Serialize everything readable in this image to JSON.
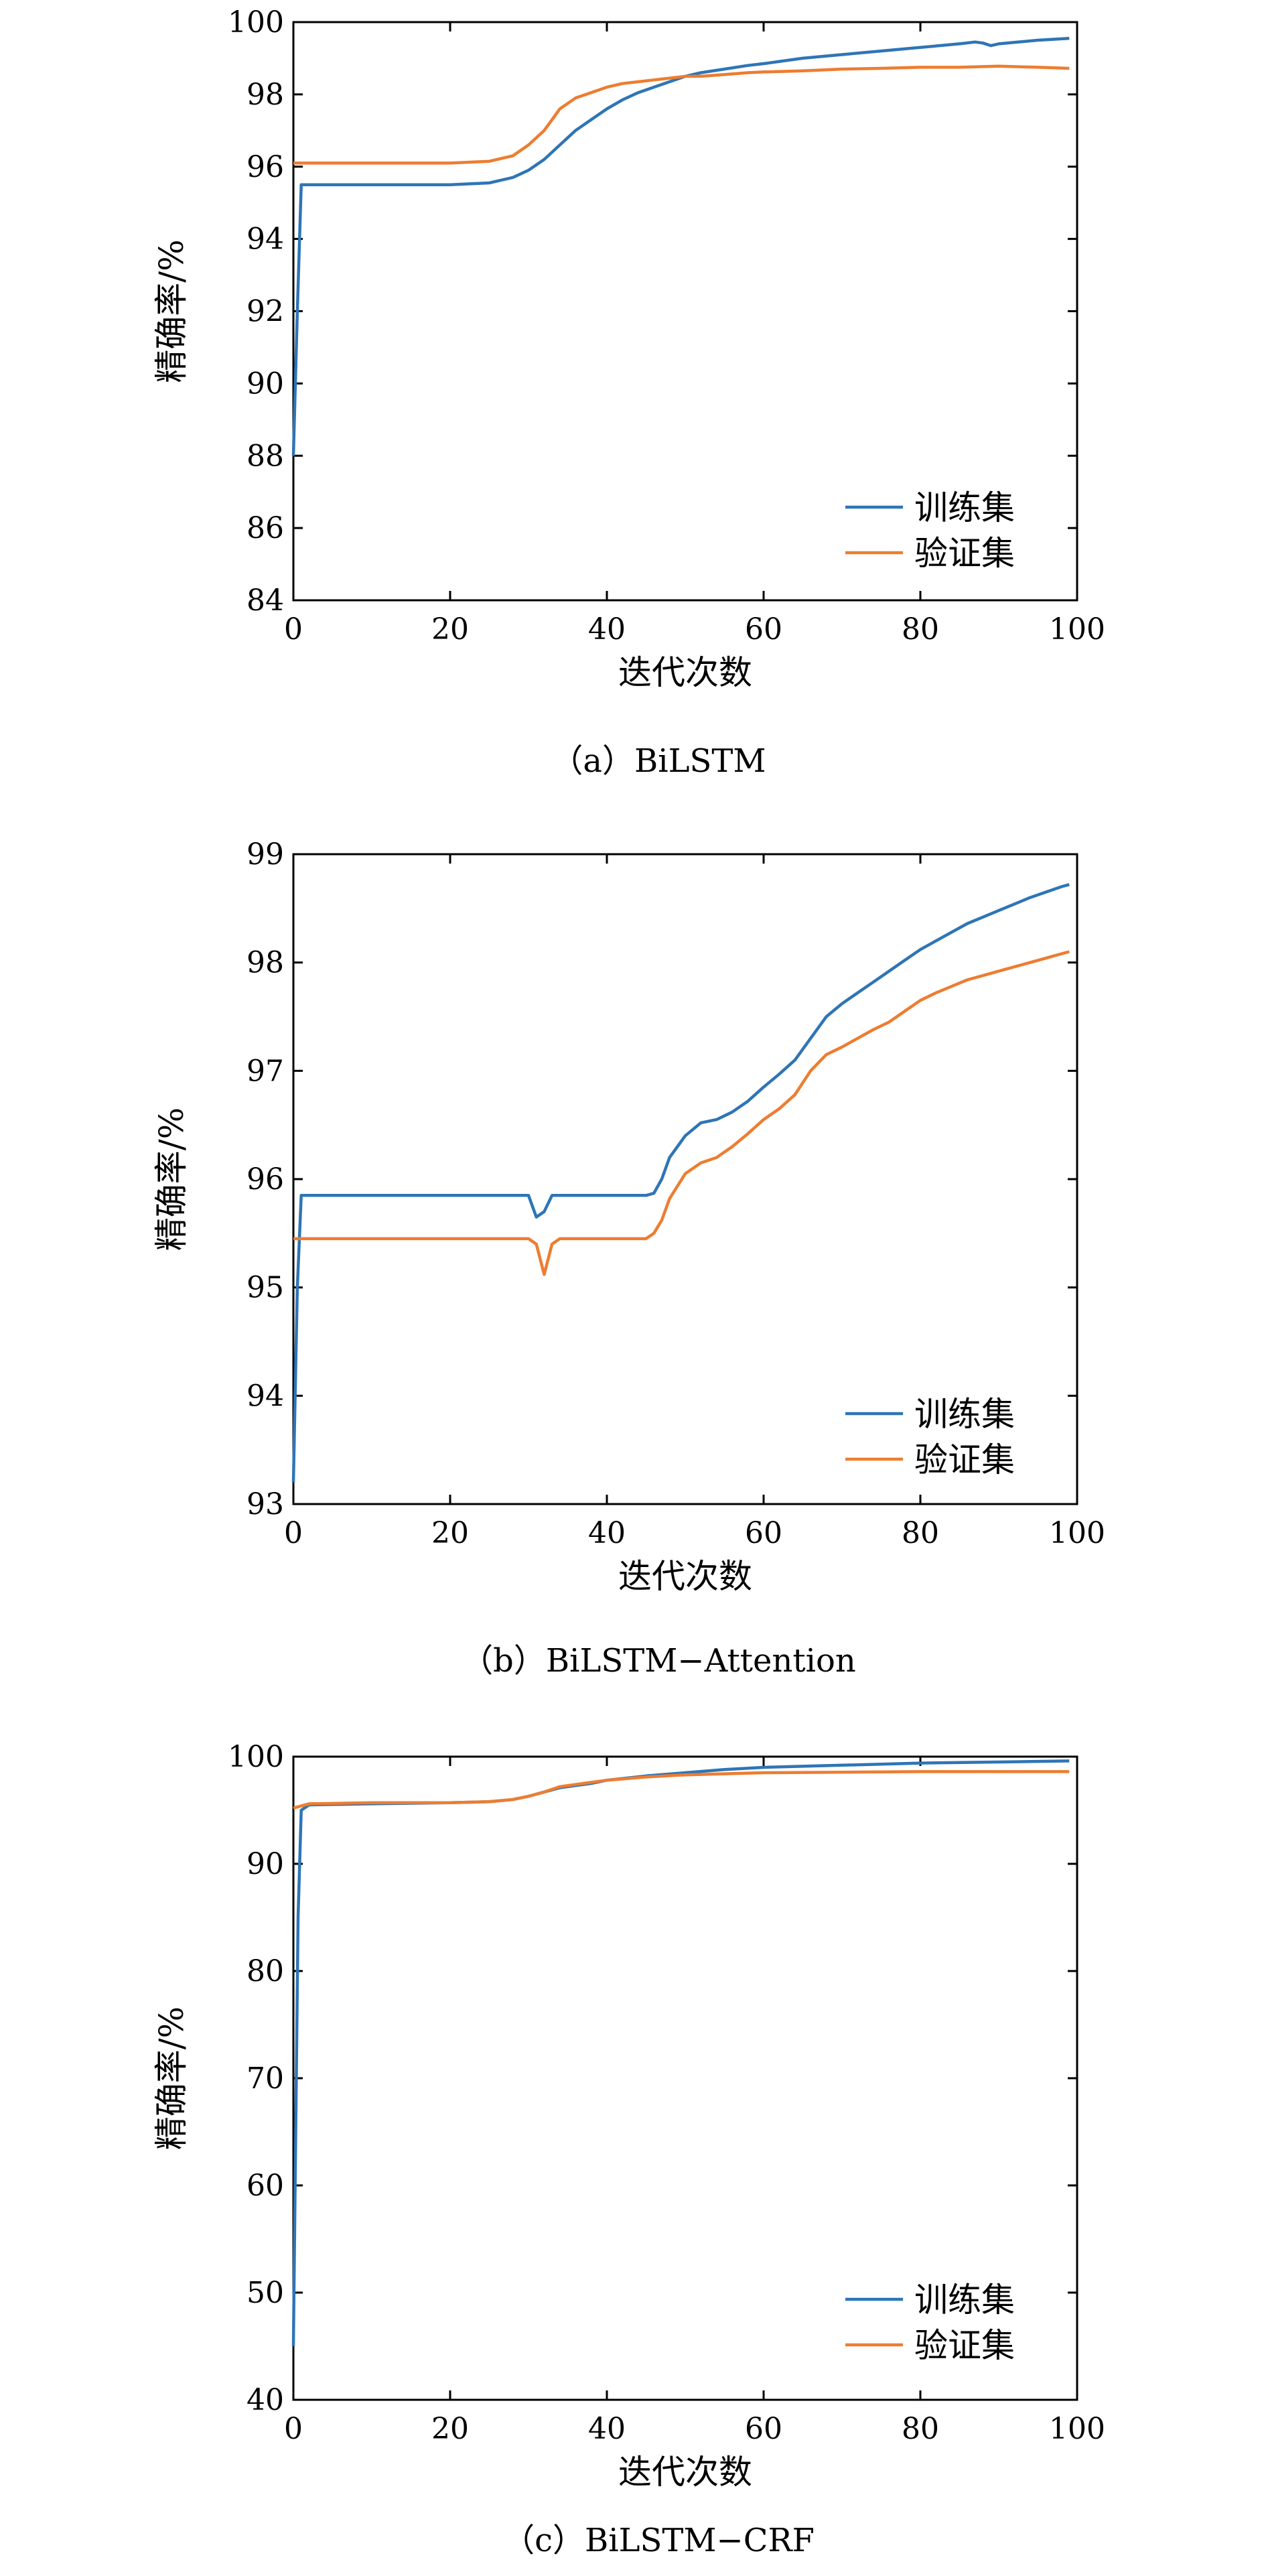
{
  "chart_data": [
    {
      "type": "line",
      "caption": "（a）BiLSTM",
      "xlabel": "迭代次数",
      "ylabel": "精确率/%",
      "xlim": [
        0,
        100
      ],
      "ylim": [
        84,
        100
      ],
      "xticks": [
        0,
        20,
        40,
        60,
        80,
        100
      ],
      "yticks": [
        84,
        86,
        88,
        90,
        92,
        94,
        96,
        98,
        100
      ],
      "grid": false,
      "legend": "bottom-right",
      "series": [
        {
          "name": "训练集",
          "color": "#2e75b6",
          "x": [
            0,
            0.5,
            1,
            5,
            10,
            20,
            25,
            28,
            30,
            32,
            34,
            36,
            38,
            40,
            42,
            44,
            46,
            48,
            50,
            52,
            55,
            58,
            60,
            65,
            70,
            75,
            80,
            85,
            87,
            88,
            89,
            90,
            95,
            99
          ],
          "y": [
            88,
            92,
            95.5,
            95.5,
            95.5,
            95.5,
            95.55,
            95.7,
            95.9,
            96.2,
            96.6,
            97.0,
            97.3,
            97.6,
            97.85,
            98.05,
            98.2,
            98.35,
            98.5,
            98.6,
            98.7,
            98.8,
            98.85,
            99.0,
            99.1,
            99.2,
            99.3,
            99.4,
            99.45,
            99.42,
            99.35,
            99.4,
            99.5,
            99.55
          ]
        },
        {
          "name": "验证集",
          "color": "#ed7d31",
          "x": [
            0,
            0.5,
            1,
            10,
            20,
            25,
            28,
            30,
            32,
            34,
            36,
            38,
            40,
            42,
            44,
            46,
            48,
            50,
            52,
            55,
            58,
            60,
            65,
            70,
            75,
            80,
            85,
            90,
            95,
            99
          ],
          "y": [
            96.1,
            96.1,
            96.1,
            96.1,
            96.1,
            96.15,
            96.3,
            96.6,
            97.0,
            97.6,
            97.9,
            98.05,
            98.2,
            98.3,
            98.35,
            98.4,
            98.45,
            98.5,
            98.5,
            98.55,
            98.6,
            98.62,
            98.65,
            98.7,
            98.72,
            98.75,
            98.75,
            98.78,
            98.75,
            98.72
          ]
        }
      ]
    },
    {
      "type": "line",
      "caption": "（b）BiLSTM−Attention",
      "xlabel": "迭代次数",
      "ylabel": "精确率/%",
      "xlim": [
        0,
        100
      ],
      "ylim": [
        93,
        99
      ],
      "xticks": [
        0,
        20,
        40,
        60,
        80,
        100
      ],
      "yticks": [
        93,
        94,
        95,
        96,
        97,
        98,
        99
      ],
      "grid": false,
      "legend": "bottom-right",
      "series": [
        {
          "name": "训练集",
          "color": "#2e75b6",
          "x": [
            0,
            0.5,
            1,
            10,
            20,
            30,
            31,
            32,
            33,
            34,
            40,
            45,
            46,
            47,
            48,
            50,
            52,
            54,
            56,
            58,
            60,
            62,
            64,
            66,
            68,
            70,
            72,
            74,
            76,
            78,
            80,
            82,
            84,
            86,
            88,
            90,
            92,
            94,
            96,
            98,
            99
          ],
          "y": [
            93.2,
            95.0,
            95.85,
            95.85,
            95.85,
            95.85,
            95.65,
            95.7,
            95.85,
            95.85,
            95.85,
            95.85,
            95.87,
            96.0,
            96.2,
            96.4,
            96.52,
            96.55,
            96.62,
            96.72,
            96.85,
            96.97,
            97.1,
            97.3,
            97.5,
            97.62,
            97.72,
            97.82,
            97.92,
            98.02,
            98.12,
            98.2,
            98.28,
            98.36,
            98.42,
            98.48,
            98.54,
            98.6,
            98.65,
            98.7,
            98.72
          ]
        },
        {
          "name": "验证集",
          "color": "#ed7d31",
          "x": [
            0,
            0.5,
            1,
            10,
            20,
            30,
            31,
            32,
            33,
            34,
            40,
            45,
            46,
            47,
            48,
            50,
            52,
            54,
            56,
            58,
            60,
            62,
            64,
            66,
            68,
            70,
            72,
            74,
            76,
            78,
            80,
            82,
            84,
            86,
            88,
            90,
            92,
            94,
            96,
            98,
            99
          ],
          "y": [
            95.45,
            95.45,
            95.45,
            95.45,
            95.45,
            95.45,
            95.4,
            95.12,
            95.4,
            95.45,
            95.45,
            95.45,
            95.5,
            95.62,
            95.82,
            96.05,
            96.15,
            96.2,
            96.3,
            96.42,
            96.55,
            96.65,
            96.78,
            97.0,
            97.15,
            97.22,
            97.3,
            97.38,
            97.45,
            97.55,
            97.65,
            97.72,
            97.78,
            97.84,
            97.88,
            97.92,
            97.96,
            98.0,
            98.04,
            98.08,
            98.1
          ]
        }
      ]
    },
    {
      "type": "line",
      "caption": "（c）BiLSTM−CRF",
      "xlabel": "迭代次数",
      "ylabel": "精确率/%",
      "xlim": [
        0,
        100
      ],
      "ylim": [
        40,
        100
      ],
      "xticks": [
        0,
        20,
        40,
        60,
        80,
        100
      ],
      "yticks": [
        40,
        50,
        60,
        70,
        80,
        90,
        100
      ],
      "grid": false,
      "legend": "bottom-right",
      "series": [
        {
          "name": "训练集",
          "color": "#2e75b6",
          "x": [
            0,
            0.3,
            0.6,
            1,
            2,
            10,
            20,
            25,
            28,
            30,
            32,
            34,
            36,
            38,
            40,
            45,
            50,
            55,
            60,
            70,
            80,
            90,
            99
          ],
          "y": [
            45,
            65,
            85,
            95.0,
            95.5,
            95.6,
            95.7,
            95.8,
            96.0,
            96.3,
            96.7,
            97.1,
            97.3,
            97.5,
            97.8,
            98.2,
            98.5,
            98.8,
            99.0,
            99.2,
            99.4,
            99.5,
            99.6
          ]
        },
        {
          "name": "验证集",
          "color": "#ed7d31",
          "x": [
            0,
            1,
            2,
            10,
            20,
            25,
            28,
            30,
            32,
            34,
            36,
            38,
            40,
            45,
            50,
            55,
            60,
            70,
            80,
            90,
            99
          ],
          "y": [
            95.2,
            95.4,
            95.6,
            95.7,
            95.7,
            95.8,
            96.0,
            96.3,
            96.7,
            97.2,
            97.4,
            97.6,
            97.8,
            98.1,
            98.3,
            98.4,
            98.5,
            98.55,
            98.6,
            98.6,
            98.6
          ]
        }
      ]
    }
  ]
}
